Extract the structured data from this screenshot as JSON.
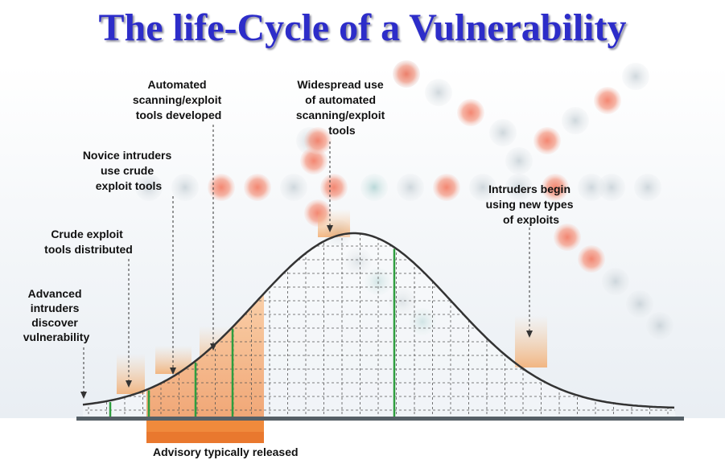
{
  "title": "The life-Cycle of a Vulnerability",
  "labels": {
    "advanced": [
      "Advanced",
      "intruders",
      "discover",
      "vulnerability"
    ],
    "crude": [
      "Crude exploit",
      "tools distributed"
    ],
    "novice": [
      "Novice intruders",
      "use crude",
      "exploit tools"
    ],
    "automated": [
      "Automated",
      "scanning/exploit",
      "tools developed"
    ],
    "widespread": [
      "Widespread use",
      "of automated",
      "scanning/exploit",
      "tools"
    ],
    "new_types": [
      "Intruders begin",
      "using new types",
      "of exploits"
    ]
  },
  "advisory": "Advisory typically released",
  "colors": {
    "title": "#2d2dc9",
    "curve": "#333333",
    "advisory_fill": "#f08a3c",
    "green_line": "#2e9e3e",
    "baseline": "#555f66"
  }
}
